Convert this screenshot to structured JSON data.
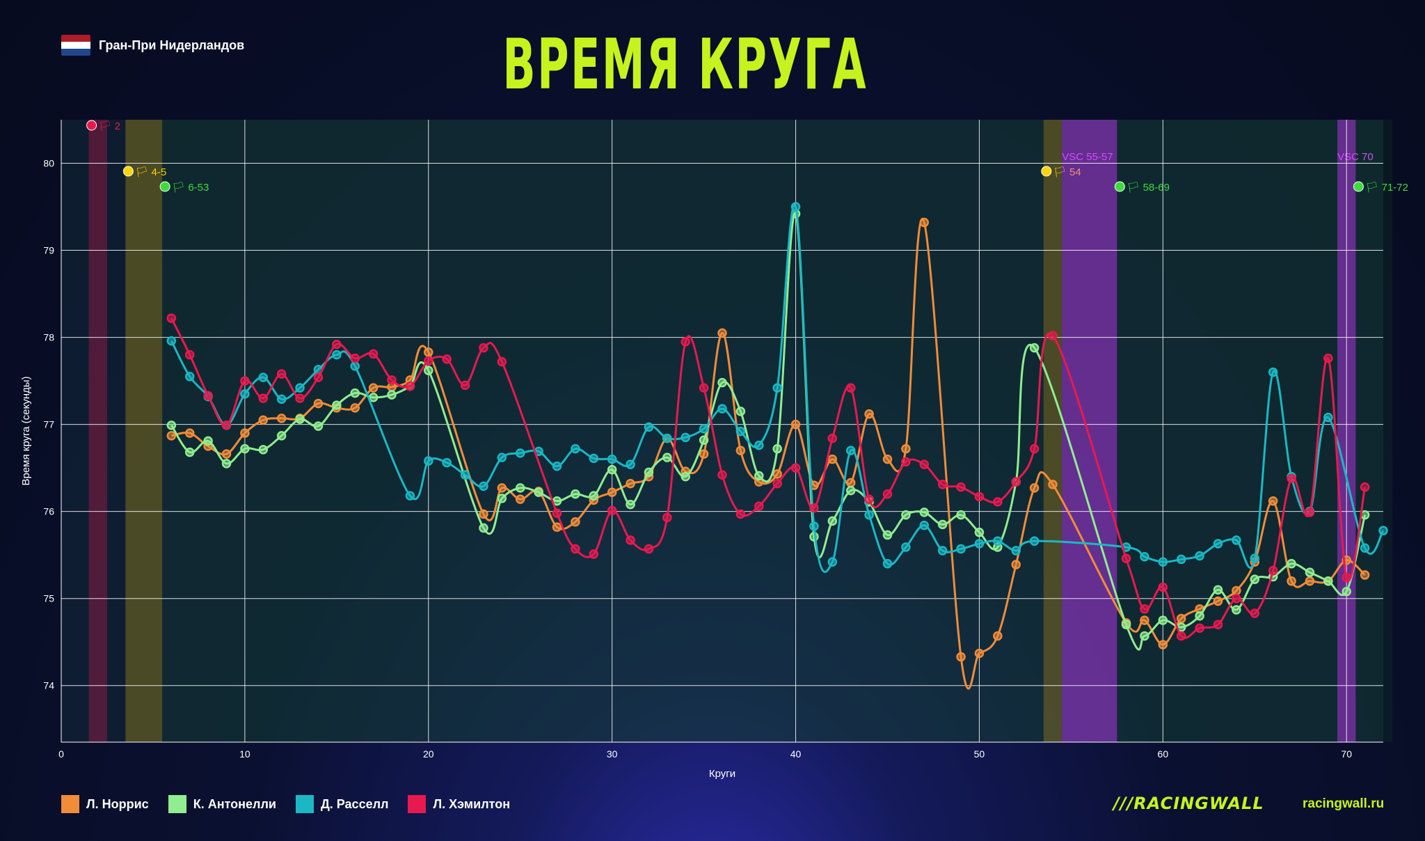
{
  "race": {
    "name": "Гран-При Нидерландов",
    "flag_colors": [
      "#ae1c28",
      "#ffffff",
      "#21468b"
    ]
  },
  "title": "ВРЕМЯ КРУГА",
  "brand": {
    "logo": "///RACINGWALL",
    "site": "racingwall.ru"
  },
  "chart_data": {
    "type": "line",
    "title": "ВРЕМЯ КРУГА",
    "xlabel": "Круги",
    "ylabel": "Время круга (секунды)",
    "xlim": [
      0,
      72
    ],
    "ylim": [
      73.35,
      80.5
    ],
    "xticks": [
      0,
      10,
      20,
      30,
      40,
      50,
      60,
      70
    ],
    "yticks": [
      74,
      75,
      76,
      77,
      78,
      79,
      80
    ],
    "grid": true,
    "legend_position": "bottom-left",
    "series": [
      {
        "name": "Л. Норрис",
        "color": "#f28c38",
        "x_start": 6,
        "values": [
          76.87,
          76.9,
          76.75,
          76.66,
          76.9,
          77.05,
          77.07,
          77.07,
          77.24,
          77.19,
          77.19,
          77.42,
          77.43,
          77.51,
          77.83,
          null,
          null,
          75.97,
          76.27,
          76.14,
          76.23,
          75.82,
          75.88,
          76.13,
          76.22,
          76.32,
          76.4,
          76.84,
          76.46,
          76.66,
          78.05,
          76.7,
          76.34,
          76.43,
          77.0,
          76.3,
          76.6,
          76.33,
          77.12,
          76.6,
          76.72,
          79.32,
          null,
          74.33,
          74.37,
          74.57,
          75.39,
          76.27,
          76.31,
          null,
          null,
          null,
          74.72,
          74.75,
          74.47,
          74.77,
          74.88,
          74.97,
          75.09,
          75.42,
          76.12,
          75.2,
          75.2,
          75.2,
          75.44,
          75.27
        ]
      },
      {
        "name": "К. Антонелли",
        "color": "#90ee90",
        "x_start": 6,
        "values": [
          76.99,
          76.68,
          76.81,
          76.55,
          76.72,
          76.71,
          76.87,
          77.06,
          76.98,
          77.22,
          77.36,
          77.31,
          77.34,
          77.44,
          77.62,
          null,
          null,
          75.81,
          76.15,
          76.27,
          76.22,
          76.12,
          76.2,
          76.18,
          76.48,
          76.08,
          76.45,
          76.62,
          76.4,
          76.82,
          77.48,
          77.15,
          76.41,
          76.72,
          79.42,
          75.71,
          75.89,
          76.24,
          76.11,
          75.73,
          75.96,
          75.99,
          75.85,
          75.96,
          75.76,
          75.59,
          76.34,
          77.88,
          null,
          null,
          null,
          null,
          74.7,
          74.57,
          74.75,
          74.67,
          74.8,
          75.1,
          74.87,
          75.22,
          75.25,
          75.4,
          75.3,
          75.2,
          75.08,
          75.96
        ]
      },
      {
        "name": "Д. Расселл",
        "color": "#1ab8c4",
        "x_start": 6,
        "values": [
          77.96,
          77.55,
          77.32,
          76.99,
          77.35,
          77.54,
          77.29,
          77.42,
          77.63,
          77.8,
          77.67,
          null,
          null,
          76.18,
          76.58,
          76.56,
          76.42,
          76.29,
          76.62,
          76.67,
          76.69,
          76.52,
          76.72,
          76.61,
          76.6,
          76.54,
          76.97,
          76.84,
          76.85,
          76.95,
          77.18,
          76.92,
          76.76,
          77.42,
          79.5,
          75.83,
          75.42,
          76.7,
          75.96,
          75.4,
          75.59,
          75.84,
          75.55,
          75.57,
          75.63,
          75.66,
          75.55,
          75.66,
          null,
          null,
          null,
          null,
          75.59,
          75.48,
          75.42,
          75.45,
          75.49,
          75.63,
          75.67,
          75.46,
          77.6,
          76.4,
          76.0,
          77.08,
          null,
          75.58,
          75.78
        ]
      },
      {
        "name": "Л. Хэмилтон",
        "color": "#e8194f",
        "x_start": 6,
        "values": [
          78.22,
          77.8,
          77.33,
          76.99,
          77.5,
          77.3,
          77.58,
          77.3,
          77.54,
          77.92,
          77.76,
          77.81,
          77.51,
          77.44,
          77.73,
          77.75,
          77.45,
          77.88,
          77.72,
          null,
          null,
          75.98,
          75.57,
          75.51,
          76.01,
          75.67,
          75.57,
          75.93,
          77.95,
          77.42,
          76.42,
          75.97,
          76.06,
          76.32,
          76.5,
          76.04,
          76.84,
          77.42,
          76.14,
          76.2,
          76.57,
          76.54,
          76.31,
          76.28,
          76.17,
          76.11,
          76.34,
          76.72,
          78.02,
          null,
          null,
          null,
          75.46,
          74.88,
          75.13,
          74.57,
          74.66,
          74.7,
          75.0,
          74.83,
          75.32,
          76.38,
          75.99,
          77.76,
          75.24,
          76.28
        ]
      }
    ],
    "annotations": [
      {
        "type": "flag",
        "color": "red",
        "laps": [
          2,
          2
        ],
        "label": "🏳 2"
      },
      {
        "type": "flag",
        "color": "yellow",
        "laps": [
          4,
          5
        ],
        "label": "🏳 4-5"
      },
      {
        "type": "flag",
        "color": "green",
        "laps": [
          6,
          53
        ],
        "label": "🏳 6-53"
      },
      {
        "type": "flag",
        "color": "yellow",
        "laps": [
          54,
          54
        ],
        "label": "🏳 54"
      },
      {
        "type": "vsc",
        "color": "purple",
        "laps": [
          55,
          57
        ],
        "label": "VSC 55-57"
      },
      {
        "type": "flag",
        "color": "green",
        "laps": [
          58,
          69
        ],
        "label": "🏳 58-69"
      },
      {
        "type": "vsc",
        "color": "purple",
        "laps": [
          70,
          70
        ],
        "label": "VSC 70"
      },
      {
        "type": "flag",
        "color": "green",
        "laps": [
          71,
          72
        ],
        "label": "🏳 71-72"
      }
    ]
  },
  "colors": {
    "accent": "#c6f31d",
    "red_flag": "#e8194f",
    "yellow_flag": "#ffd400",
    "green_flag": "#22cc22",
    "vsc": "#cc44ff"
  }
}
